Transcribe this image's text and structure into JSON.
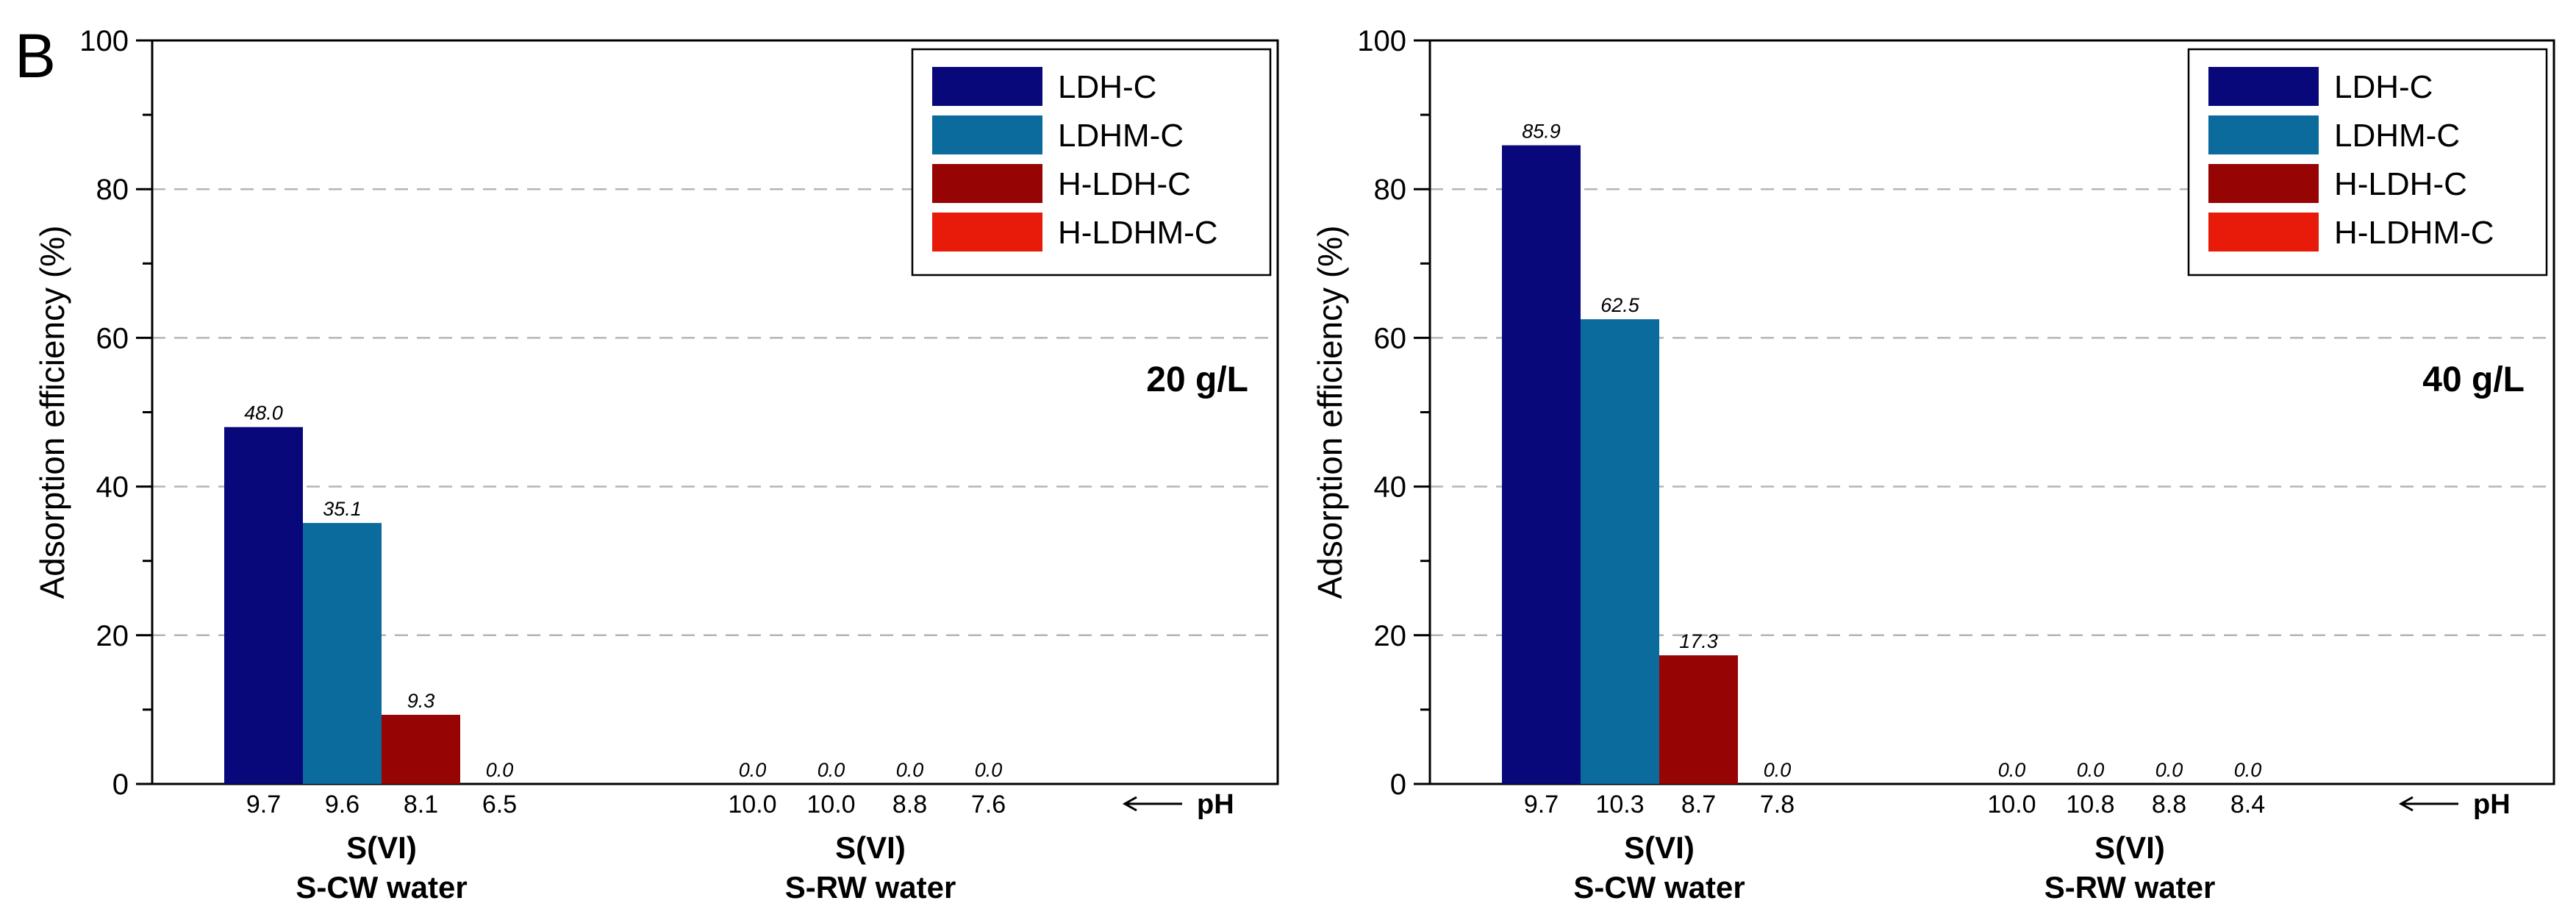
{
  "panel_letter": "B",
  "colors": {
    "LDH-C": "#08087a",
    "LDHM-C": "#0a6b9c",
    "H-LDH-C": "#960404",
    "H-LDHM-C": "#e81a0a"
  },
  "legend": [
    "LDH-C",
    "LDHM-C",
    "H-LDH-C",
    "H-LDHM-C"
  ],
  "ph_arrow": {
    "arrow": "⟵",
    "label": "pH"
  },
  "chart_data": [
    {
      "type": "bar",
      "title": "20 g/L",
      "ylabel": "Adsorption efficiency (%)",
      "ylim": [
        0,
        100
      ],
      "yticks": [
        "0",
        "20",
        "40",
        "60",
        "80",
        "100"
      ],
      "grid": "dashed horizontal at 20, 40, 60, 80",
      "legend_position": "top-right",
      "groups": [
        {
          "label_line1": "S(VI)",
          "label_line2": "S-CW water",
          "series": [
            "LDH-C",
            "LDHM-C",
            "H-LDH-C",
            "H-LDHM-C"
          ],
          "values": [
            48.0,
            35.1,
            9.3,
            0.0
          ],
          "value_labels": [
            "48.0",
            "35.1",
            "9.3",
            "0.0"
          ],
          "ph": [
            "9.7",
            "9.6",
            "8.1",
            "6.5"
          ]
        },
        {
          "label_line1": "S(VI)",
          "label_line2": "S-RW water",
          "series": [
            "LDH-C",
            "LDHM-C",
            "H-LDH-C",
            "H-LDHM-C"
          ],
          "values": [
            0.0,
            0.0,
            0.0,
            0.0
          ],
          "value_labels": [
            "0.0",
            "0.0",
            "0.0",
            "0.0"
          ],
          "ph": [
            "10.0",
            "10.0",
            "8.8",
            "7.6"
          ]
        }
      ]
    },
    {
      "type": "bar",
      "title": "40 g/L",
      "ylabel": "Adsorption efficiency (%)",
      "ylim": [
        0,
        100
      ],
      "yticks": [
        "0",
        "20",
        "40",
        "60",
        "80",
        "100"
      ],
      "grid": "dashed horizontal at 20, 40, 60, 80",
      "legend_position": "top-right",
      "groups": [
        {
          "label_line1": "S(VI)",
          "label_line2": "S-CW water",
          "series": [
            "LDH-C",
            "LDHM-C",
            "H-LDH-C",
            "H-LDHM-C"
          ],
          "values": [
            85.9,
            62.5,
            17.3,
            0.0
          ],
          "value_labels": [
            "85.9",
            "62.5",
            "17.3",
            "0.0"
          ],
          "ph": [
            "9.7",
            "10.3",
            "8.7",
            "7.8"
          ]
        },
        {
          "label_line1": "S(VI)",
          "label_line2": "S-RW water",
          "series": [
            "LDH-C",
            "LDHM-C",
            "H-LDH-C",
            "H-LDHM-C"
          ],
          "values": [
            0.0,
            0.0,
            0.0,
            0.0
          ],
          "value_labels": [
            "0.0",
            "0.0",
            "0.0",
            "0.0"
          ],
          "ph": [
            "10.0",
            "10.8",
            "8.8",
            "8.4"
          ]
        }
      ]
    }
  ]
}
